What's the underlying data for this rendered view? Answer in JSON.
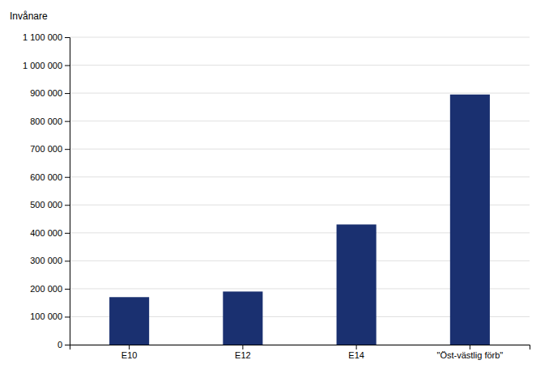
{
  "chart_data": {
    "type": "bar",
    "ylabel": "Invånare",
    "categories": [
      "E10",
      "E12",
      "E14",
      "\"Öst-västlig förb\""
    ],
    "values": [
      170000,
      190000,
      430000,
      895000
    ],
    "color": "#1a3070",
    "ylim": [
      0,
      1100000
    ],
    "yticks": [
      0,
      {
        "value": 100000,
        "label": "100 000"
      },
      {
        "value": 200000,
        "label": "200 000"
      },
      {
        "value": 300000,
        "label": "300 000"
      },
      {
        "value": 400000,
        "label": "400 000"
      },
      {
        "value": 500000,
        "label": "500 000"
      },
      {
        "value": 600000,
        "label": "600 000"
      },
      {
        "value": 700000,
        "label": "700 000"
      },
      {
        "value": 800000,
        "label": "800 000"
      },
      {
        "value": 900000,
        "label": "900 000"
      },
      {
        "value": 1000000,
        "label": "1 000 000"
      },
      {
        "value": 1100000,
        "label": "1 100 000"
      }
    ],
    "grid": true
  }
}
